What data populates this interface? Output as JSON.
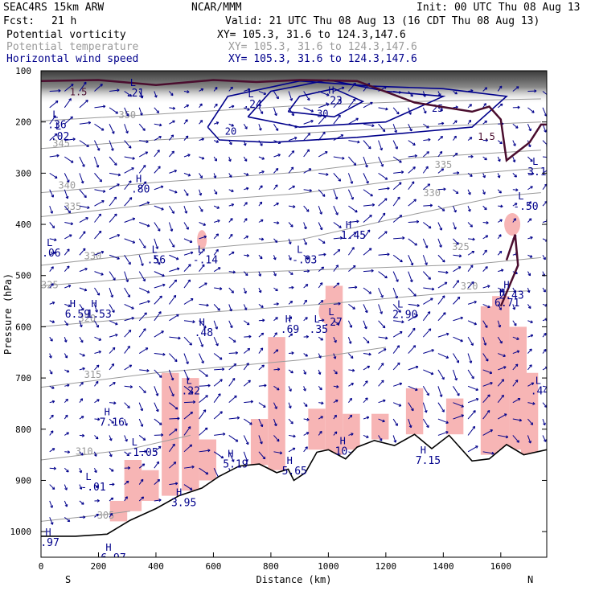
{
  "header": {
    "model": "SEAC4RS 15km ARW",
    "producer": "NCAR/MMM",
    "init": "Init: 00 UTC Thu 08 Aug 13",
    "fcst_label": "Fcst:",
    "fcst_value": "21 h",
    "valid": "Valid: 21 UTC Thu 08 Aug 13 (16 CDT Thu 08 Aug 13)",
    "fields": [
      {
        "name": "Potential vorticity",
        "xy": "XY= 105.3, 31.6 to 124.3,147.6",
        "color": "#000000",
        "xy_color": "#000000"
      },
      {
        "name": "Potential temperature",
        "xy": "XY= 105.3, 31.6 to 124.3,147.6",
        "color": "#9a9a9a",
        "xy_color": "#9a9a9a"
      },
      {
        "name": "Horizontal wind speed",
        "xy": "XY= 105.3, 31.6 to 124.3,147.6",
        "color": "#00008b",
        "xy_color": "#00008b"
      }
    ]
  },
  "chart_data": {
    "type": "cross-section",
    "xlabel": "Distance (km)",
    "ylabel": "Pressure (hPa)",
    "xlim": [
      0,
      1760
    ],
    "ylim": [
      1050,
      100
    ],
    "x_ticks": [
      0,
      200,
      400,
      600,
      800,
      1000,
      1200,
      1400,
      1600
    ],
    "y_ticks": [
      100,
      200,
      300,
      400,
      500,
      600,
      700,
      800,
      900,
      1000
    ],
    "left_end_label": "S",
    "right_end_label": "N",
    "colors": {
      "pv_contour": "#4a0d2e",
      "theta_contour": "#9a9a9a",
      "wind_contour": "#00008b",
      "pv_shading": "#f7b5b5",
      "upper_shading": "#505050"
    },
    "terrain": [
      {
        "x": 0,
        "p": 1009
      },
      {
        "x": 120,
        "p": 1009
      },
      {
        "x": 230,
        "p": 1005
      },
      {
        "x": 310,
        "p": 978
      },
      {
        "x": 400,
        "p": 955
      },
      {
        "x": 480,
        "p": 930
      },
      {
        "x": 560,
        "p": 915
      },
      {
        "x": 620,
        "p": 892
      },
      {
        "x": 690,
        "p": 872
      },
      {
        "x": 760,
        "p": 868
      },
      {
        "x": 820,
        "p": 885
      },
      {
        "x": 860,
        "p": 878
      },
      {
        "x": 880,
        "p": 900
      },
      {
        "x": 920,
        "p": 885
      },
      {
        "x": 960,
        "p": 845
      },
      {
        "x": 1000,
        "p": 840
      },
      {
        "x": 1060,
        "p": 858
      },
      {
        "x": 1100,
        "p": 835
      },
      {
        "x": 1160,
        "p": 822
      },
      {
        "x": 1230,
        "p": 832
      },
      {
        "x": 1300,
        "p": 810
      },
      {
        "x": 1360,
        "p": 838
      },
      {
        "x": 1420,
        "p": 812
      },
      {
        "x": 1500,
        "p": 862
      },
      {
        "x": 1560,
        "p": 858
      },
      {
        "x": 1620,
        "p": 830
      },
      {
        "x": 1680,
        "p": 850
      },
      {
        "x": 1760,
        "p": 840
      }
    ],
    "theta_contours": [
      {
        "label": "305",
        "labelx": 195,
        "labelp": 975,
        "points": [
          {
            "x": 0,
            "p": 980
          },
          {
            "x": 200,
            "p": 968
          },
          {
            "x": 310,
            "p": 960
          }
        ]
      },
      {
        "label": "310",
        "labelx": 120,
        "labelp": 850,
        "points": [
          {
            "x": 0,
            "p": 860
          },
          {
            "x": 300,
            "p": 840
          },
          {
            "x": 520,
            "p": 812
          }
        ]
      },
      {
        "label": "315",
        "labelx": 150,
        "labelp": 700,
        "points": [
          {
            "x": 0,
            "p": 718
          },
          {
            "x": 400,
            "p": 690
          },
          {
            "x": 900,
            "p": 665
          },
          {
            "x": 1200,
            "p": 640
          }
        ]
      },
      {
        "label": "320",
        "labelx": 130,
        "labelp": 590,
        "points": [
          {
            "x": 0,
            "p": 600
          },
          {
            "x": 500,
            "p": 575
          },
          {
            "x": 1000,
            "p": 555
          },
          {
            "x": 1400,
            "p": 535
          },
          {
            "x": 1700,
            "p": 530
          }
        ]
      },
      {
        "label": "320",
        "labelx": 1460,
        "labelp": 527,
        "points": []
      },
      {
        "label": "325",
        "labelx": 0,
        "labelp": 525,
        "points": [
          {
            "x": 0,
            "p": 520
          },
          {
            "x": 500,
            "p": 498
          },
          {
            "x": 1000,
            "p": 488
          },
          {
            "x": 1500,
            "p": 478
          },
          {
            "x": 1740,
            "p": 465
          }
        ]
      },
      {
        "label": "325",
        "labelx": 1430,
        "labelp": 450,
        "points": []
      },
      {
        "label": "330",
        "labelx": 150,
        "labelp": 468,
        "points": [
          {
            "x": 0,
            "p": 480
          },
          {
            "x": 400,
            "p": 455
          },
          {
            "x": 900,
            "p": 430
          },
          {
            "x": 1300,
            "p": 380
          },
          {
            "x": 1600,
            "p": 345
          },
          {
            "x": 1740,
            "p": 338
          }
        ]
      },
      {
        "label": "330",
        "labelx": 1330,
        "labelp": 345,
        "points": []
      },
      {
        "label": "335",
        "labelx": 80,
        "labelp": 372,
        "points": [
          {
            "x": 0,
            "p": 385
          },
          {
            "x": 400,
            "p": 360
          },
          {
            "x": 900,
            "p": 340
          },
          {
            "x": 1300,
            "p": 310
          },
          {
            "x": 1740,
            "p": 290
          }
        ]
      },
      {
        "label": "335",
        "labelx": 1370,
        "labelp": 290,
        "points": []
      },
      {
        "label": "340",
        "labelx": 60,
        "labelp": 330,
        "points": [
          {
            "x": 0,
            "p": 338
          },
          {
            "x": 400,
            "p": 318
          },
          {
            "x": 900,
            "p": 298
          },
          {
            "x": 1300,
            "p": 270
          },
          {
            "x": 1740,
            "p": 255
          }
        ]
      },
      {
        "label": "345",
        "labelx": 40,
        "labelp": 248,
        "points": [
          {
            "x": 0,
            "p": 252
          },
          {
            "x": 400,
            "p": 235
          },
          {
            "x": 900,
            "p": 222
          },
          {
            "x": 1300,
            "p": 210
          },
          {
            "x": 1740,
            "p": 200
          }
        ]
      },
      {
        "label": "350",
        "labelx": 270,
        "labelp": 193,
        "points": [
          {
            "x": 0,
            "p": 198
          },
          {
            "x": 400,
            "p": 185
          },
          {
            "x": 900,
            "p": 168
          },
          {
            "x": 1300,
            "p": 160
          },
          {
            "x": 1740,
            "p": 155
          }
        ]
      }
    ],
    "wind_contours": [
      {
        "label": "20",
        "points": [
          {
            "x": 580,
            "p": 210
          },
          {
            "x": 650,
            "p": 150
          },
          {
            "x": 900,
            "p": 120
          },
          {
            "x": 1150,
            "p": 130
          },
          {
            "x": 1400,
            "p": 135
          },
          {
            "x": 1620,
            "p": 150
          },
          {
            "x": 1500,
            "p": 210
          },
          {
            "x": 1100,
            "p": 230
          },
          {
            "x": 800,
            "p": 240
          },
          {
            "x": 620,
            "p": 235
          },
          {
            "x": 580,
            "p": 210
          }
        ]
      },
      {
        "label": "25",
        "points": [
          {
            "x": 720,
            "p": 190
          },
          {
            "x": 800,
            "p": 140
          },
          {
            "x": 1000,
            "p": 118
          },
          {
            "x": 1200,
            "p": 140
          },
          {
            "x": 1400,
            "p": 150
          },
          {
            "x": 1200,
            "p": 200
          },
          {
            "x": 900,
            "p": 210
          },
          {
            "x": 720,
            "p": 190
          }
        ]
      },
      {
        "label": "30",
        "points": [
          {
            "x": 860,
            "p": 180
          },
          {
            "x": 900,
            "p": 150
          },
          {
            "x": 1020,
            "p": 135
          },
          {
            "x": 1120,
            "p": 160
          },
          {
            "x": 1020,
            "p": 190
          },
          {
            "x": 860,
            "p": 180
          }
        ]
      }
    ],
    "wind_contour_labels": [
      {
        "text": "20",
        "x": 640,
        "p": 225
      },
      {
        "text": "25",
        "x": 1360,
        "p": 180
      },
      {
        "text": "30",
        "x": 960,
        "p": 190
      }
    ],
    "pv_contour_labels": [
      {
        "text": "1.5",
        "x": 100,
        "p": 148
      },
      {
        "text": "1.5",
        "x": 1520,
        "p": 235
      }
    ],
    "extrema": [
      {
        "kind": "L",
        "value": ".21",
        "x": 310,
        "p": 150
      },
      {
        "kind": "L",
        "value": ".36",
        "x": 40,
        "p": 212
      },
      {
        "kind": "L",
        "value": ".02",
        "x": 50,
        "p": 235
      },
      {
        "kind": "L",
        "value": ".24",
        "x": 720,
        "p": 172
      },
      {
        "kind": "H",
        "value": ".23",
        "x": 1000,
        "p": 165
      },
      {
        "kind": "H",
        "value": ".80",
        "x": 330,
        "p": 338
      },
      {
        "kind": "H",
        "value": "1.45",
        "x": 1060,
        "p": 428
      },
      {
        "kind": "L",
        "value": "3.15",
        "x": 1710,
        "p": 304
      },
      {
        "kind": "L",
        "value": "-.50",
        "x": 1660,
        "p": 372
      },
      {
        "kind": "L",
        "value": ".56",
        "x": 385,
        "p": 476
      },
      {
        "kind": "L",
        "value": "-.14",
        "x": 545,
        "p": 476
      },
      {
        "kind": "L",
        "value": "-.03",
        "x": 890,
        "p": 476
      },
      {
        "kind": "L",
        "value": ".06",
        "x": 20,
        "p": 463
      },
      {
        "kind": "H",
        "value": "2.43",
        "x": 1610,
        "p": 545
      },
      {
        "kind": "H",
        "value": "6.59",
        "x": 100,
        "p": 582
      },
      {
        "kind": "H",
        "value": "1.53",
        "x": 175,
        "p": 582
      },
      {
        "kind": "H",
        "value": ".48",
        "x": 550,
        "p": 618
      },
      {
        "kind": "H",
        "value": ".69",
        "x": 850,
        "p": 612
      },
      {
        "kind": "L",
        "value": ".35",
        "x": 950,
        "p": 612
      },
      {
        "kind": "L",
        "value": ".27",
        "x": 1000,
        "p": 598
      },
      {
        "kind": "L",
        "value": "2.90",
        "x": 1240,
        "p": 583
      },
      {
        "kind": "H",
        "value": "6.71",
        "x": 1595,
        "p": 560
      },
      {
        "kind": "L",
        "value": ".22",
        "x": 505,
        "p": 732
      },
      {
        "kind": "L",
        "value": ".44",
        "x": 1720,
        "p": 732
      },
      {
        "kind": "H",
        "value": "7.16",
        "x": 220,
        "p": 793
      },
      {
        "kind": "L",
        "value": "-1.05",
        "x": 315,
        "p": 852
      },
      {
        "kind": "H",
        "value": "5.19",
        "x": 650,
        "p": 875
      },
      {
        "kind": "H",
        "value": "5.65",
        "x": 855,
        "p": 888
      },
      {
        "kind": "H",
        "value": "10",
        "x": 1040,
        "p": 850
      },
      {
        "kind": "H",
        "value": "7.15",
        "x": 1320,
        "p": 868
      },
      {
        "kind": "L",
        "value": "-.01",
        "x": 155,
        "p": 920
      },
      {
        "kind": "H",
        "value": "3.95",
        "x": 470,
        "p": 950
      },
      {
        "kind": "H",
        "value": "6.97",
        "x": 225,
        "p": 1058
      },
      {
        "kind": "H",
        "value": ".97",
        "x": 15,
        "p": 1028
      }
    ]
  }
}
